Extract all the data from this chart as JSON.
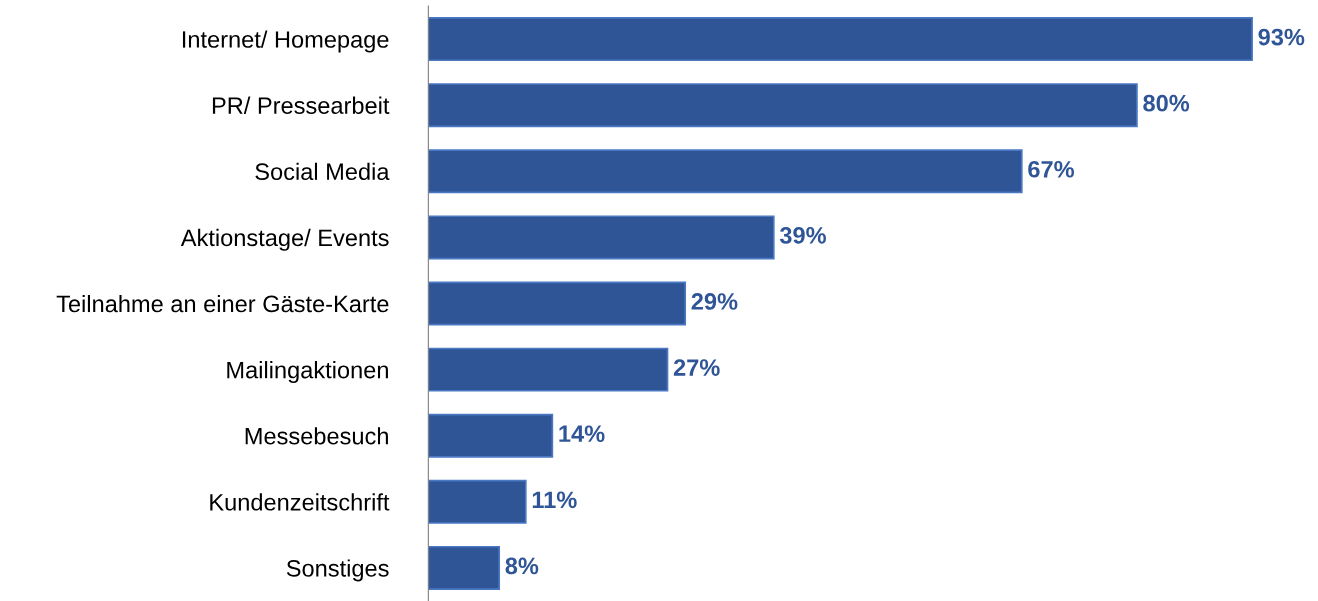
{
  "chart_data": {
    "type": "bar",
    "orientation": "horizontal",
    "categories": [
      "Internet/ Homepage",
      "PR/ Pressearbeit",
      "Social Media",
      "Aktionstage/ Events",
      "Teilnahme an einer Gäste-Karte",
      "Mailingaktionen",
      "Messebesuch",
      "Kundenzeitschrift",
      "Sonstiges"
    ],
    "values": [
      93,
      80,
      67,
      39,
      29,
      27,
      14,
      11,
      8
    ],
    "value_labels": [
      "93%",
      "80%",
      "67%",
      "39%",
      "29%",
      "27%",
      "14%",
      "11%",
      "8%"
    ],
    "color": "#2f5597",
    "grid": false,
    "legend": false
  }
}
